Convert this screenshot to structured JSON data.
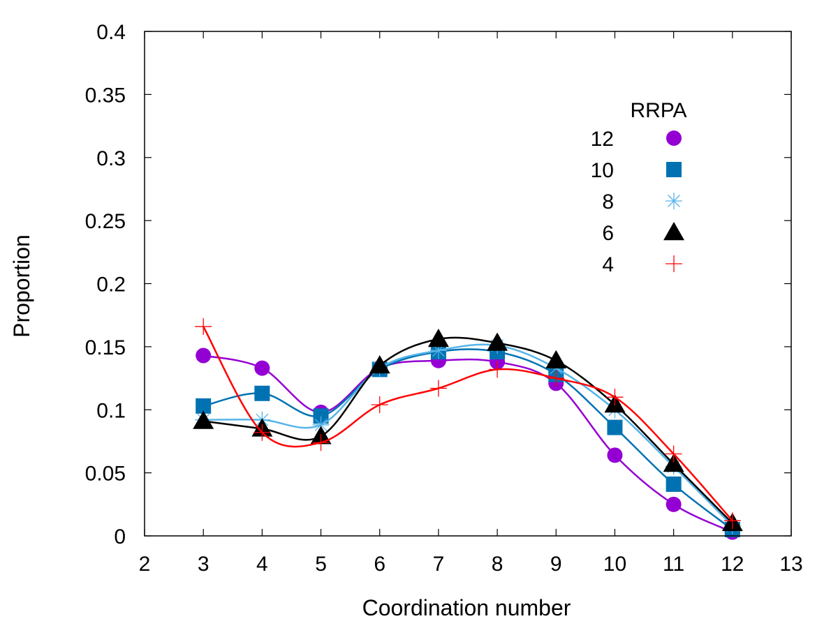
{
  "chart_data": {
    "type": "line",
    "xlabel": "Coordination number",
    "ylabel": "Proportion",
    "xlim": [
      2,
      13
    ],
    "ylim": [
      0,
      0.4
    ],
    "xticks": [
      2,
      3,
      4,
      5,
      6,
      7,
      8,
      9,
      10,
      11,
      12,
      13
    ],
    "yticks": [
      0,
      0.05,
      0.1,
      0.15,
      0.2,
      0.25,
      0.3,
      0.35,
      0.4
    ],
    "ytick_labels": [
      "0",
      "0.05",
      "0.1",
      "0.15",
      "0.2",
      "0.25",
      "0.3",
      "0.35",
      "0.4"
    ],
    "legend_title": "RRPA",
    "legend_position": "top-right",
    "x": [
      3,
      4,
      5,
      6,
      7,
      8,
      9,
      10,
      11,
      12
    ],
    "series": [
      {
        "name": "12",
        "marker": "circle",
        "color": "#9400d3",
        "values": [
          0.143,
          0.133,
          0.098,
          0.133,
          0.139,
          0.138,
          0.121,
          0.064,
          0.025,
          0.003
        ]
      },
      {
        "name": "10",
        "marker": "square",
        "color": "#0072b2",
        "values": [
          0.103,
          0.113,
          0.095,
          0.132,
          0.146,
          0.146,
          0.128,
          0.086,
          0.041,
          0.005
        ]
      },
      {
        "name": "8",
        "marker": "asterisk",
        "color": "#56b4e9",
        "values": [
          0.092,
          0.092,
          0.088,
          0.133,
          0.147,
          0.151,
          0.133,
          0.1,
          0.055,
          0.008
        ]
      },
      {
        "name": "6",
        "marker": "triangle",
        "color": "#000000",
        "values": [
          0.091,
          0.085,
          0.079,
          0.135,
          0.156,
          0.153,
          0.139,
          0.104,
          0.057,
          0.01
        ]
      },
      {
        "name": "4",
        "marker": "plus",
        "color": "#ff0000",
        "values": [
          0.166,
          0.082,
          0.074,
          0.104,
          0.117,
          0.132,
          0.125,
          0.11,
          0.065,
          0.012
        ]
      }
    ]
  }
}
